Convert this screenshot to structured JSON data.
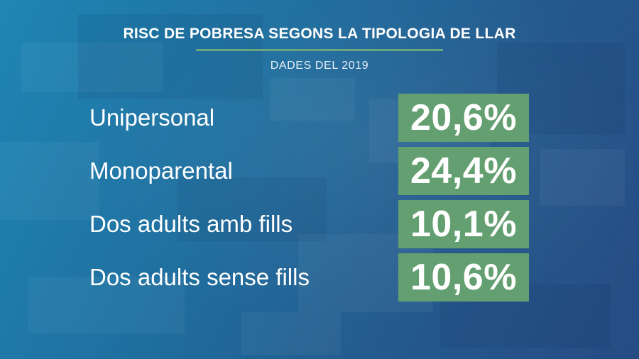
{
  "header": {
    "title": "RISC DE POBRESA SEGONS LA TIPOLOGIA DE LLAR",
    "subtitle": "DADES DEL 2019"
  },
  "rows": [
    {
      "label": "Unipersonal",
      "value": "20,6%"
    },
    {
      "label": "Monoparental",
      "value": "24,4%"
    },
    {
      "label": "Dos adults amb fills",
      "value": "10,1%"
    },
    {
      "label": "Dos adults sense fills",
      "value": "10,6%"
    }
  ],
  "colors": {
    "accent_green": "#639f70",
    "rule_green": "#6aa67a",
    "background_blue": "#1f6e9e",
    "text": "#ffffff"
  }
}
